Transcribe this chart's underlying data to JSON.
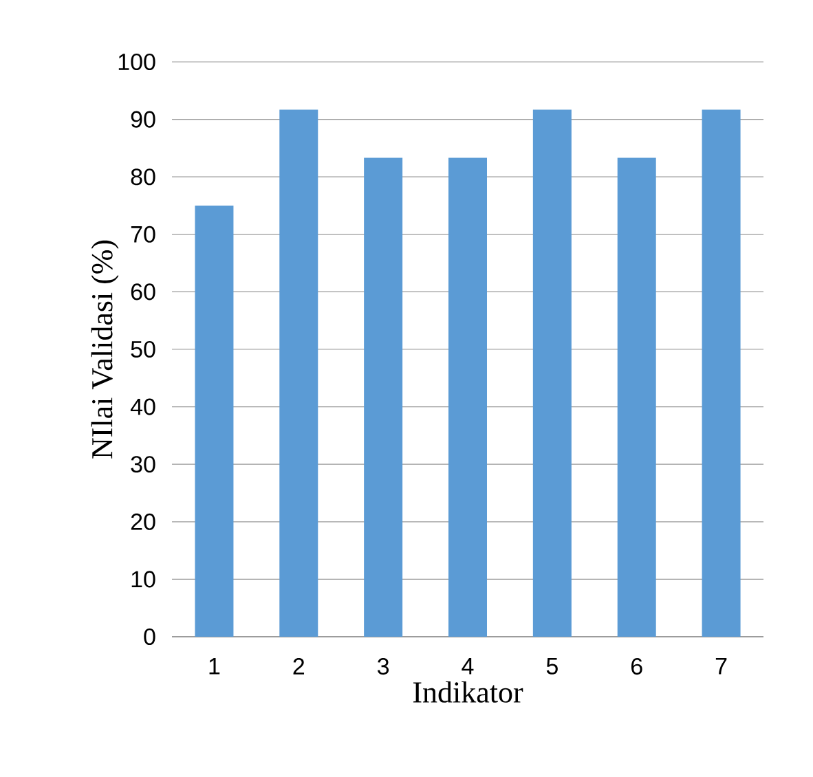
{
  "chart_data": {
    "type": "bar",
    "xlabel": "Indikator",
    "ylabel": "NIlai Validasi (%)",
    "categories": [
      "1",
      "2",
      "3",
      "4",
      "5",
      "6",
      "7"
    ],
    "values": [
      75,
      91.7,
      83.3,
      83.3,
      91.7,
      83.3,
      91.7
    ],
    "color": "#5b9bd5",
    "ylim": [
      0,
      100
    ],
    "yticks": [
      0,
      10,
      20,
      30,
      40,
      50,
      60,
      70,
      80,
      90,
      100
    ],
    "grid": "y"
  }
}
